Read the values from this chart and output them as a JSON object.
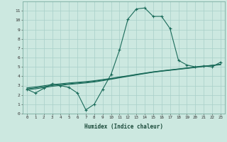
{
  "xlabel": "Humidex (Indice chaleur)",
  "x_values": [
    0,
    1,
    2,
    3,
    4,
    5,
    6,
    7,
    8,
    9,
    10,
    11,
    12,
    13,
    14,
    15,
    16,
    17,
    18,
    19,
    20,
    21,
    22,
    23
  ],
  "main_line": [
    2.6,
    2.2,
    2.7,
    3.2,
    3.0,
    2.8,
    2.2,
    0.4,
    1.0,
    2.6,
    4.2,
    6.8,
    10.1,
    11.2,
    11.3,
    10.4,
    10.4,
    9.1,
    5.7,
    5.2,
    5.0,
    5.1,
    5.0,
    5.5
  ],
  "line2": [
    2.55,
    2.65,
    2.78,
    2.92,
    3.02,
    3.12,
    3.2,
    3.28,
    3.38,
    3.52,
    3.67,
    3.83,
    3.98,
    4.13,
    4.28,
    4.42,
    4.53,
    4.63,
    4.73,
    4.83,
    4.93,
    5.03,
    5.13,
    5.23
  ],
  "line3": [
    2.65,
    2.75,
    2.88,
    3.01,
    3.11,
    3.2,
    3.28,
    3.36,
    3.46,
    3.59,
    3.73,
    3.88,
    4.02,
    4.17,
    4.31,
    4.45,
    4.56,
    4.66,
    4.76,
    4.86,
    4.96,
    5.06,
    5.16,
    5.26
  ],
  "line4": [
    2.75,
    2.85,
    2.98,
    3.1,
    3.19,
    3.28,
    3.35,
    3.42,
    3.52,
    3.64,
    3.77,
    3.92,
    4.05,
    4.2,
    4.34,
    4.47,
    4.58,
    4.68,
    4.78,
    4.88,
    4.98,
    5.07,
    5.17,
    5.27
  ],
  "bg_color": "#cce8e0",
  "grid_color": "#a8cfc8",
  "line_color": "#1a6b5a",
  "ylim": [
    0,
    12
  ],
  "xlim": [
    -0.5,
    23.5
  ],
  "yticks": [
    0,
    1,
    2,
    3,
    4,
    5,
    6,
    7,
    8,
    9,
    10,
    11
  ],
  "xticks": [
    0,
    1,
    2,
    3,
    4,
    5,
    6,
    7,
    8,
    9,
    10,
    11,
    12,
    13,
    14,
    15,
    16,
    17,
    18,
    19,
    20,
    21,
    22,
    23
  ]
}
